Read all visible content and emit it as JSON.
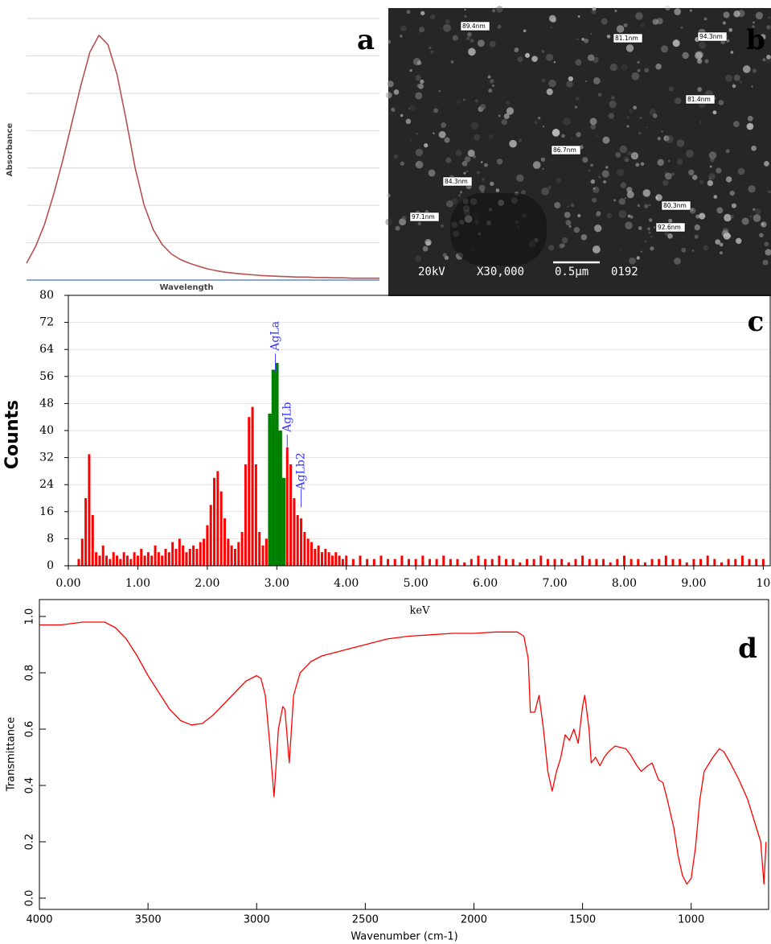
{
  "chart_data": [
    {
      "type": "line",
      "panel": "a",
      "ylabel": "Absorbance",
      "xlabel": "Wavelength",
      "color": "#b5524f",
      "ylim": [
        0,
        7
      ],
      "gridlines": [
        1,
        2,
        3,
        4,
        5,
        6,
        7
      ],
      "values": [
        0.45,
        0.9,
        1.5,
        2.3,
        3.2,
        4.2,
        5.2,
        6.1,
        6.55,
        6.3,
        5.5,
        4.3,
        3.0,
        2.0,
        1.35,
        0.95,
        0.7,
        0.55,
        0.45,
        0.37,
        0.3,
        0.25,
        0.21,
        0.18,
        0.16,
        0.14,
        0.12,
        0.11,
        0.1,
        0.09,
        0.08,
        0.08,
        0.07,
        0.07,
        0.06,
        0.06,
        0.05,
        0.05,
        0.05,
        0.05
      ]
    },
    {
      "type": "spectrum",
      "panel": "c",
      "xlabel": "keV",
      "ylabel": "Counts",
      "xlim": [
        0,
        10.1
      ],
      "ylim": [
        0,
        80
      ],
      "grid": true,
      "xticks": [
        {
          "value": 0,
          "label": "0.00"
        },
        {
          "value": 1,
          "label": "1.00"
        },
        {
          "value": 2,
          "label": "2.00"
        },
        {
          "value": 3,
          "label": "3.00"
        },
        {
          "value": 4,
          "label": "4.00"
        },
        {
          "value": 5,
          "label": "5.00"
        },
        {
          "value": 6,
          "label": "6.00"
        },
        {
          "value": 7,
          "label": "7.00"
        },
        {
          "value": 8,
          "label": "8.00"
        },
        {
          "value": 9,
          "label": "9.00"
        },
        {
          "value": 10,
          "label": "10"
        }
      ],
      "yticks": [
        0,
        8,
        16,
        24,
        32,
        40,
        48,
        56,
        64,
        72,
        80
      ],
      "series": [
        {
          "color": "#ff0000",
          "x": [
            0.15,
            0.2,
            0.25,
            0.3,
            0.35,
            0.4,
            0.45,
            0.5,
            0.55,
            0.6,
            0.65,
            0.7,
            0.75,
            0.8,
            0.85,
            0.9,
            0.95,
            1.0,
            1.05,
            1.1,
            1.15,
            1.2,
            1.25,
            1.3,
            1.35,
            1.4,
            1.45,
            1.5,
            1.55,
            1.6,
            1.65,
            1.7,
            1.75,
            1.8,
            1.85,
            1.9,
            1.95,
            2.0,
            2.05,
            2.1,
            2.15,
            2.2,
            2.25,
            2.3,
            2.35,
            2.4,
            2.45,
            2.5,
            2.55,
            2.6,
            2.65,
            2.7,
            2.75,
            2.8,
            2.85,
            3.15,
            3.2,
            3.25,
            3.3,
            3.35,
            3.4,
            3.45,
            3.5,
            3.55,
            3.6,
            3.65,
            3.7,
            3.75,
            3.8,
            3.85,
            3.9,
            3.95,
            4.0,
            4.1,
            4.2,
            4.3,
            4.4,
            4.5,
            4.6,
            4.7,
            4.8,
            4.9,
            5.0,
            5.1,
            5.2,
            5.3,
            5.4,
            5.5,
            5.6,
            5.7,
            5.8,
            5.9,
            6.0,
            6.1,
            6.2,
            6.3,
            6.4,
            6.5,
            6.6,
            6.7,
            6.8,
            6.9,
            7.0,
            7.1,
            7.2,
            7.3,
            7.4,
            7.5,
            7.6,
            7.7,
            7.8,
            7.9,
            8.0,
            8.1,
            8.2,
            8.3,
            8.4,
            8.5,
            8.6,
            8.7,
            8.8,
            8.9,
            9.0,
            9.1,
            9.2,
            9.3,
            9.4,
            9.5,
            9.6,
            9.7,
            9.8,
            9.9,
            10.0
          ],
          "values": [
            2,
            8,
            20,
            33,
            15,
            4,
            3,
            6,
            3,
            2,
            4,
            3,
            2,
            4,
            3,
            2,
            4,
            3,
            5,
            3,
            4,
            3,
            6,
            4,
            3,
            5,
            4,
            7,
            5,
            8,
            6,
            4,
            5,
            6,
            5,
            7,
            8,
            12,
            18,
            26,
            28,
            22,
            14,
            8,
            6,
            5,
            7,
            10,
            30,
            44,
            47,
            30,
            10,
            6,
            8,
            35,
            30,
            20,
            15,
            14,
            10,
            8,
            7,
            5,
            6,
            4,
            5,
            4,
            3,
            4,
            3,
            2,
            3,
            2,
            3,
            2,
            2,
            3,
            2,
            2,
            3,
            2,
            2,
            3,
            2,
            2,
            3,
            2,
            2,
            1,
            2,
            3,
            2,
            2,
            3,
            2,
            2,
            1,
            2,
            2,
            3,
            2,
            2,
            2,
            1,
            2,
            3,
            2,
            2,
            2,
            1,
            2,
            3,
            2,
            2,
            1,
            2,
            2,
            3,
            2,
            2,
            1,
            2,
            2,
            3,
            2,
            1,
            2,
            2,
            3,
            2,
            2,
            2
          ]
        },
        {
          "color": "#008000",
          "x": [
            2.9,
            2.95,
            3.0,
            3.05,
            3.1
          ],
          "values": [
            45,
            58,
            60,
            40,
            26
          ]
        }
      ],
      "annotations": [
        {
          "text": "AgLa",
          "x": 2.98,
          "y": 68
        },
        {
          "text": "AgLb",
          "x": 3.15,
          "y": 44
        },
        {
          "text": "AgLb2",
          "x": 3.35,
          "y": 28
        }
      ]
    },
    {
      "type": "line",
      "panel": "d",
      "xlabel": "Wavenumber (cm-1)",
      "ylabel": "Transmittance",
      "color": "#ff0000",
      "xlim": [
        4000,
        640
      ],
      "ylim": [
        -0.04,
        1.06
      ],
      "xticks": [
        4000,
        3500,
        3000,
        2500,
        2000,
        1500,
        1000
      ],
      "yticks": [
        {
          "value": 0,
          "label": "0.0"
        },
        0.2,
        0.4,
        0.6,
        0.8,
        {
          "value": 1,
          "label": "1.0"
        }
      ],
      "x": [
        4000,
        3900,
        3800,
        3700,
        3650,
        3600,
        3550,
        3500,
        3450,
        3400,
        3350,
        3300,
        3250,
        3200,
        3150,
        3100,
        3050,
        3000,
        2980,
        2960,
        2940,
        2920,
        2900,
        2880,
        2870,
        2850,
        2830,
        2800,
        2750,
        2700,
        2600,
        2500,
        2400,
        2300,
        2200,
        2100,
        2000,
        1900,
        1800,
        1770,
        1750,
        1740,
        1720,
        1700,
        1680,
        1660,
        1640,
        1620,
        1600,
        1580,
        1560,
        1540,
        1520,
        1500,
        1490,
        1470,
        1460,
        1440,
        1420,
        1400,
        1380,
        1350,
        1300,
        1280,
        1250,
        1230,
        1200,
        1180,
        1150,
        1130,
        1110,
        1080,
        1060,
        1040,
        1020,
        1000,
        980,
        960,
        940,
        900,
        870,
        850,
        820,
        780,
        740,
        700,
        680,
        665,
        655
      ],
      "values": [
        0.97,
        0.97,
        0.98,
        0.98,
        0.96,
        0.92,
        0.86,
        0.79,
        0.73,
        0.67,
        0.63,
        0.615,
        0.62,
        0.65,
        0.69,
        0.73,
        0.77,
        0.79,
        0.78,
        0.72,
        0.55,
        0.36,
        0.6,
        0.68,
        0.67,
        0.48,
        0.72,
        0.8,
        0.84,
        0.86,
        0.88,
        0.9,
        0.92,
        0.93,
        0.935,
        0.94,
        0.94,
        0.945,
        0.945,
        0.93,
        0.85,
        0.66,
        0.66,
        0.72,
        0.6,
        0.45,
        0.38,
        0.45,
        0.5,
        0.58,
        0.56,
        0.6,
        0.55,
        0.68,
        0.72,
        0.6,
        0.48,
        0.5,
        0.47,
        0.5,
        0.52,
        0.54,
        0.53,
        0.51,
        0.47,
        0.45,
        0.47,
        0.48,
        0.42,
        0.41,
        0.35,
        0.25,
        0.15,
        0.08,
        0.05,
        0.07,
        0.18,
        0.35,
        0.45,
        0.5,
        0.53,
        0.52,
        0.48,
        0.42,
        0.35,
        0.25,
        0.2,
        0.05,
        0.2
      ]
    }
  ],
  "sem": {
    "panel": "b",
    "labels": [
      "89.4nm",
      "81.1nm",
      "94.3nm",
      "81.4nm",
      "86.7nm",
      "84.3nm",
      "80.3nm",
      "97.1nm",
      "92.6nm"
    ],
    "footer": [
      "20kV",
      "X30,000",
      "0.5µm",
      "0192"
    ]
  }
}
